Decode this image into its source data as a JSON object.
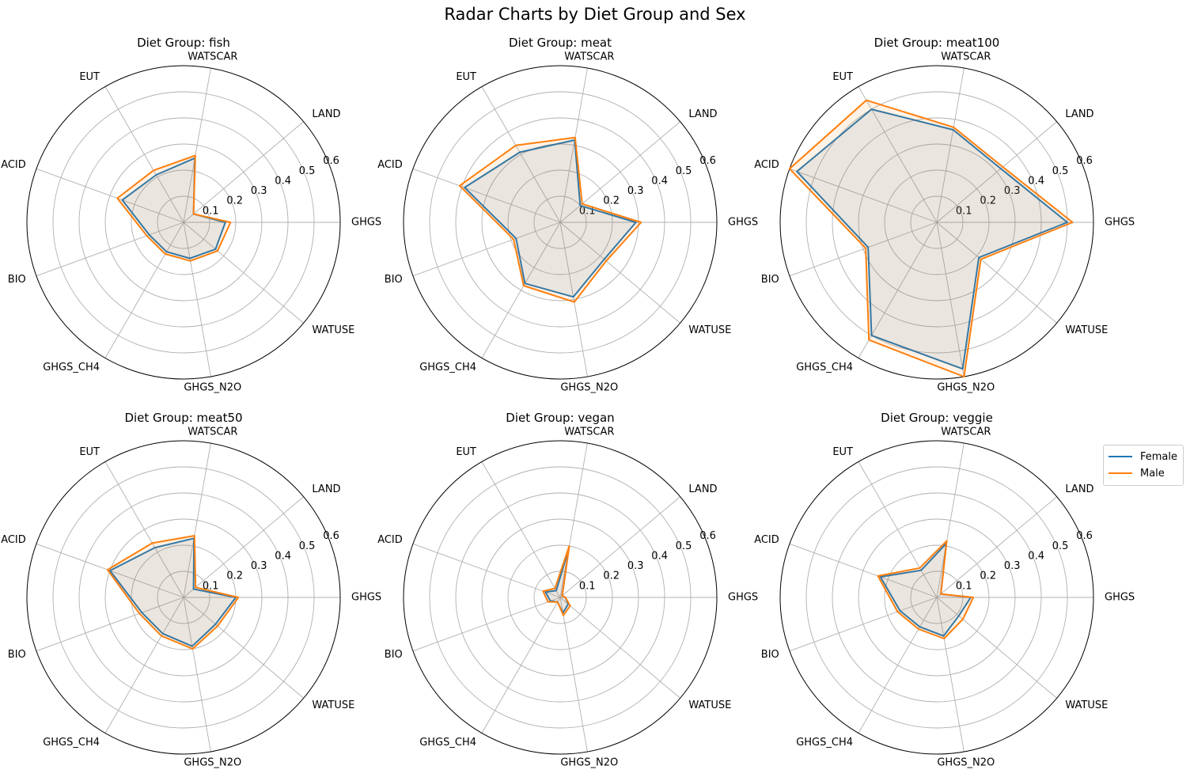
{
  "figure": {
    "title": "Radar Charts by Diet Group and Sex"
  },
  "colors": {
    "female": "#1f77b4",
    "male": "#ff7f0e",
    "grid": "#b0b0b0",
    "fill": "#c8bfb0"
  },
  "legend": {
    "female_label": "Female",
    "male_label": "Male",
    "placement": "right"
  },
  "chart_data": [
    {
      "type": "radar",
      "title": "Diet Group: fish",
      "axes": [
        "GHGS",
        "LAND",
        "WATSCAR",
        "EUT",
        "ACID",
        "BIO",
        "GHGS_CH4",
        "GHGS_N2O",
        "WATUSE"
      ],
      "r_ticks": [
        "0.1",
        "0.2",
        "0.3",
        "0.4",
        "0.5",
        "0.6"
      ],
      "rlim": [
        0,
        0.6
      ],
      "grid": true,
      "series": [
        {
          "name": "Female",
          "values": [
            0.16,
            0.05,
            0.25,
            0.21,
            0.25,
            0.14,
            0.13,
            0.14,
            0.16
          ]
        },
        {
          "name": "Male",
          "values": [
            0.18,
            0.05,
            0.26,
            0.23,
            0.27,
            0.15,
            0.14,
            0.15,
            0.17
          ]
        }
      ]
    },
    {
      "type": "radar",
      "title": "Diet Group: meat",
      "axes": [
        "GHGS",
        "LAND",
        "WATSCAR",
        "EUT",
        "ACID",
        "BIO",
        "GHGS_CH4",
        "GHGS_N2O",
        "WATUSE"
      ],
      "r_ticks": [
        "0.1",
        "0.2",
        "0.3",
        "0.4",
        "0.5",
        "0.6"
      ],
      "rlim": [
        0,
        0.6
      ],
      "grid": true,
      "series": [
        {
          "name": "Female",
          "values": [
            0.29,
            0.1,
            0.32,
            0.31,
            0.39,
            0.18,
            0.27,
            0.29,
            0.22
          ]
        },
        {
          "name": "Male",
          "values": [
            0.31,
            0.11,
            0.33,
            0.34,
            0.41,
            0.19,
            0.28,
            0.31,
            0.23
          ]
        }
      ]
    },
    {
      "type": "radar",
      "title": "Diet Group: meat100",
      "axes": [
        "GHGS",
        "LAND",
        "WATSCAR",
        "EUT",
        "ACID",
        "BIO",
        "GHGS_CH4",
        "GHGS_N2O",
        "WATUSE"
      ],
      "r_ticks": [
        "0.1",
        "0.2",
        "0.3",
        "0.4",
        "0.5",
        "0.6"
      ],
      "rlim": [
        0,
        0.6
      ],
      "grid": true,
      "series": [
        {
          "name": "Female",
          "values": [
            0.5,
            0.32,
            0.36,
            0.5,
            0.57,
            0.28,
            0.5,
            0.57,
            0.21
          ]
        },
        {
          "name": "Male",
          "values": [
            0.52,
            0.33,
            0.37,
            0.54,
            0.6,
            0.29,
            0.52,
            0.6,
            0.22
          ]
        }
      ]
    },
    {
      "type": "radar",
      "title": "Diet Group: meat50",
      "axes": [
        "GHGS",
        "LAND",
        "WATSCAR",
        "EUT",
        "ACID",
        "BIO",
        "GHGS_CH4",
        "GHGS_N2O",
        "WATUSE"
      ],
      "r_ticks": [
        "0.1",
        "0.2",
        "0.3",
        "0.4",
        "0.5",
        "0.6"
      ],
      "rlim": [
        0,
        0.6
      ],
      "grid": true,
      "series": [
        {
          "name": "Female",
          "values": [
            0.2,
            0.05,
            0.23,
            0.22,
            0.3,
            0.17,
            0.16,
            0.19,
            0.16
          ]
        },
        {
          "name": "Male",
          "values": [
            0.21,
            0.06,
            0.24,
            0.24,
            0.31,
            0.18,
            0.17,
            0.2,
            0.17
          ]
        }
      ]
    },
    {
      "type": "radar",
      "title": "Diet Group: vegan",
      "axes": [
        "GHGS",
        "LAND",
        "WATSCAR",
        "EUT",
        "ACID",
        "BIO",
        "GHGS_CH4",
        "GHGS_N2O",
        "WATUSE"
      ],
      "r_ticks": [
        "0.1",
        "0.2",
        "0.3",
        "0.4",
        "0.5",
        "0.6"
      ],
      "rlim": [
        0,
        0.6
      ],
      "grid": true,
      "series": [
        {
          "name": "Female",
          "values": [
            0.02,
            0.01,
            0.19,
            0.03,
            0.06,
            0.04,
            0.02,
            0.06,
            0.04
          ]
        },
        {
          "name": "Male",
          "values": [
            0.02,
            0.01,
            0.2,
            0.04,
            0.07,
            0.05,
            0.02,
            0.07,
            0.05
          ]
        }
      ]
    },
    {
      "type": "radar",
      "title": "Diet Group: veggie",
      "axes": [
        "GHGS",
        "LAND",
        "WATSCAR",
        "EUT",
        "ACID",
        "BIO",
        "GHGS_CH4",
        "GHGS_N2O",
        "WATUSE"
      ],
      "r_ticks": [
        "0.1",
        "0.2",
        "0.3",
        "0.4",
        "0.5",
        "0.6"
      ],
      "rlim": [
        0,
        0.6
      ],
      "grid": true,
      "series": [
        {
          "name": "Female",
          "values": [
            0.13,
            0.02,
            0.21,
            0.12,
            0.23,
            0.15,
            0.13,
            0.15,
            0.11
          ]
        },
        {
          "name": "Male",
          "values": [
            0.14,
            0.02,
            0.22,
            0.13,
            0.24,
            0.16,
            0.14,
            0.16,
            0.13
          ]
        }
      ]
    }
  ]
}
